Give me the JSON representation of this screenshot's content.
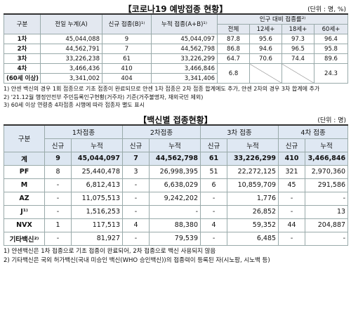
{
  "table1": {
    "title": "【코로나19 예방접종 현황】",
    "unit": "(단위 : 명, %)",
    "header": {
      "group": "구분",
      "prev": "전일 누계(A)",
      "new": "신규 접종(B)¹⁾",
      "cum": "누적 접종(A+B)¹⁾",
      "rate": "인구 대비 접종률²⁾",
      "rate_cols": [
        "전체",
        "12세+",
        "18세+",
        "60세+"
      ]
    },
    "rows": [
      [
        "1차",
        "45,044,088",
        "9",
        "45,044,097",
        "87.8",
        "95.6",
        "97.3",
        "96.4"
      ],
      [
        "2차",
        "44,562,791",
        "7",
        "44,562,798",
        "86.8",
        "94.6",
        "96.5",
        "95.8"
      ],
      [
        "3차",
        "33,226,238",
        "61",
        "33,226,299",
        "64.7",
        "70.6",
        "74.4",
        "89.6"
      ],
      [
        "4차",
        "3,466,436",
        "410",
        "3,466,846",
        "6.8",
        null,
        null,
        "24.3"
      ],
      [
        "(60세 이상)",
        "3,341,002",
        "404",
        "3,341,406"
      ]
    ],
    "notes": [
      "1) 얀센 백신의 경우 1회 접종으로 기초 접종이 완료되므로 얀센 1차 접종은 2차 접종 합계에도 추가, 얀센 2차의 경우 3차 합계에 추가",
      "2) '21.12월 행정안전부 주민등록인구현황(거주자) 기준(거주불명자, 재외국민 제외)",
      "3) 60세 이상 연령층 4차접종 시행에 따라 접종자 별도 표시"
    ]
  },
  "table2": {
    "title": "【백신별 접종현황】",
    "unit": "(단위 : 명)",
    "header": {
      "group": "구분",
      "doses": [
        "1차접종",
        "2차접종",
        "3차 접종",
        "4차 접종"
      ],
      "sub": [
        "신규",
        "누적"
      ]
    },
    "rows": [
      [
        "계",
        "9",
        "45,044,097",
        "7",
        "44,562,798",
        "61",
        "33,226,299",
        "410",
        "3,466,846"
      ],
      [
        "PF",
        "8",
        "25,440,478",
        "3",
        "26,998,395",
        "51",
        "22,272,125",
        "321",
        "2,970,360"
      ],
      [
        "M",
        "-",
        "6,812,413",
        "-",
        "6,638,029",
        "6",
        "10,859,709",
        "45",
        "291,586"
      ],
      [
        "AZ",
        "-",
        "11,075,513",
        "-",
        "9,242,202",
        "-",
        "1,776",
        "-",
        "-"
      ],
      [
        "J¹⁾",
        "-",
        "1,516,253",
        "-",
        "-",
        "-",
        "26,852",
        "-",
        "13"
      ],
      [
        "NVX",
        "1",
        "117,513",
        "4",
        "88,380",
        "4",
        "59,352",
        "44",
        "204,887"
      ],
      [
        "기타백신²⁾",
        "-",
        "81,927",
        "-",
        "79,539",
        "-",
        "6,485",
        "-",
        "-"
      ]
    ],
    "notes": [
      "1) 얀센백신은 1차 접종으로 기초 접종이 완료되어, 2차 접종으로 백신 사용되지 않음",
      "2) 기타백신은 국외 허가백신(국내 미승인 백신(WHO 승인백신))의 접종력이 등록된 자(시노팜, 시노백 등)"
    ]
  }
}
